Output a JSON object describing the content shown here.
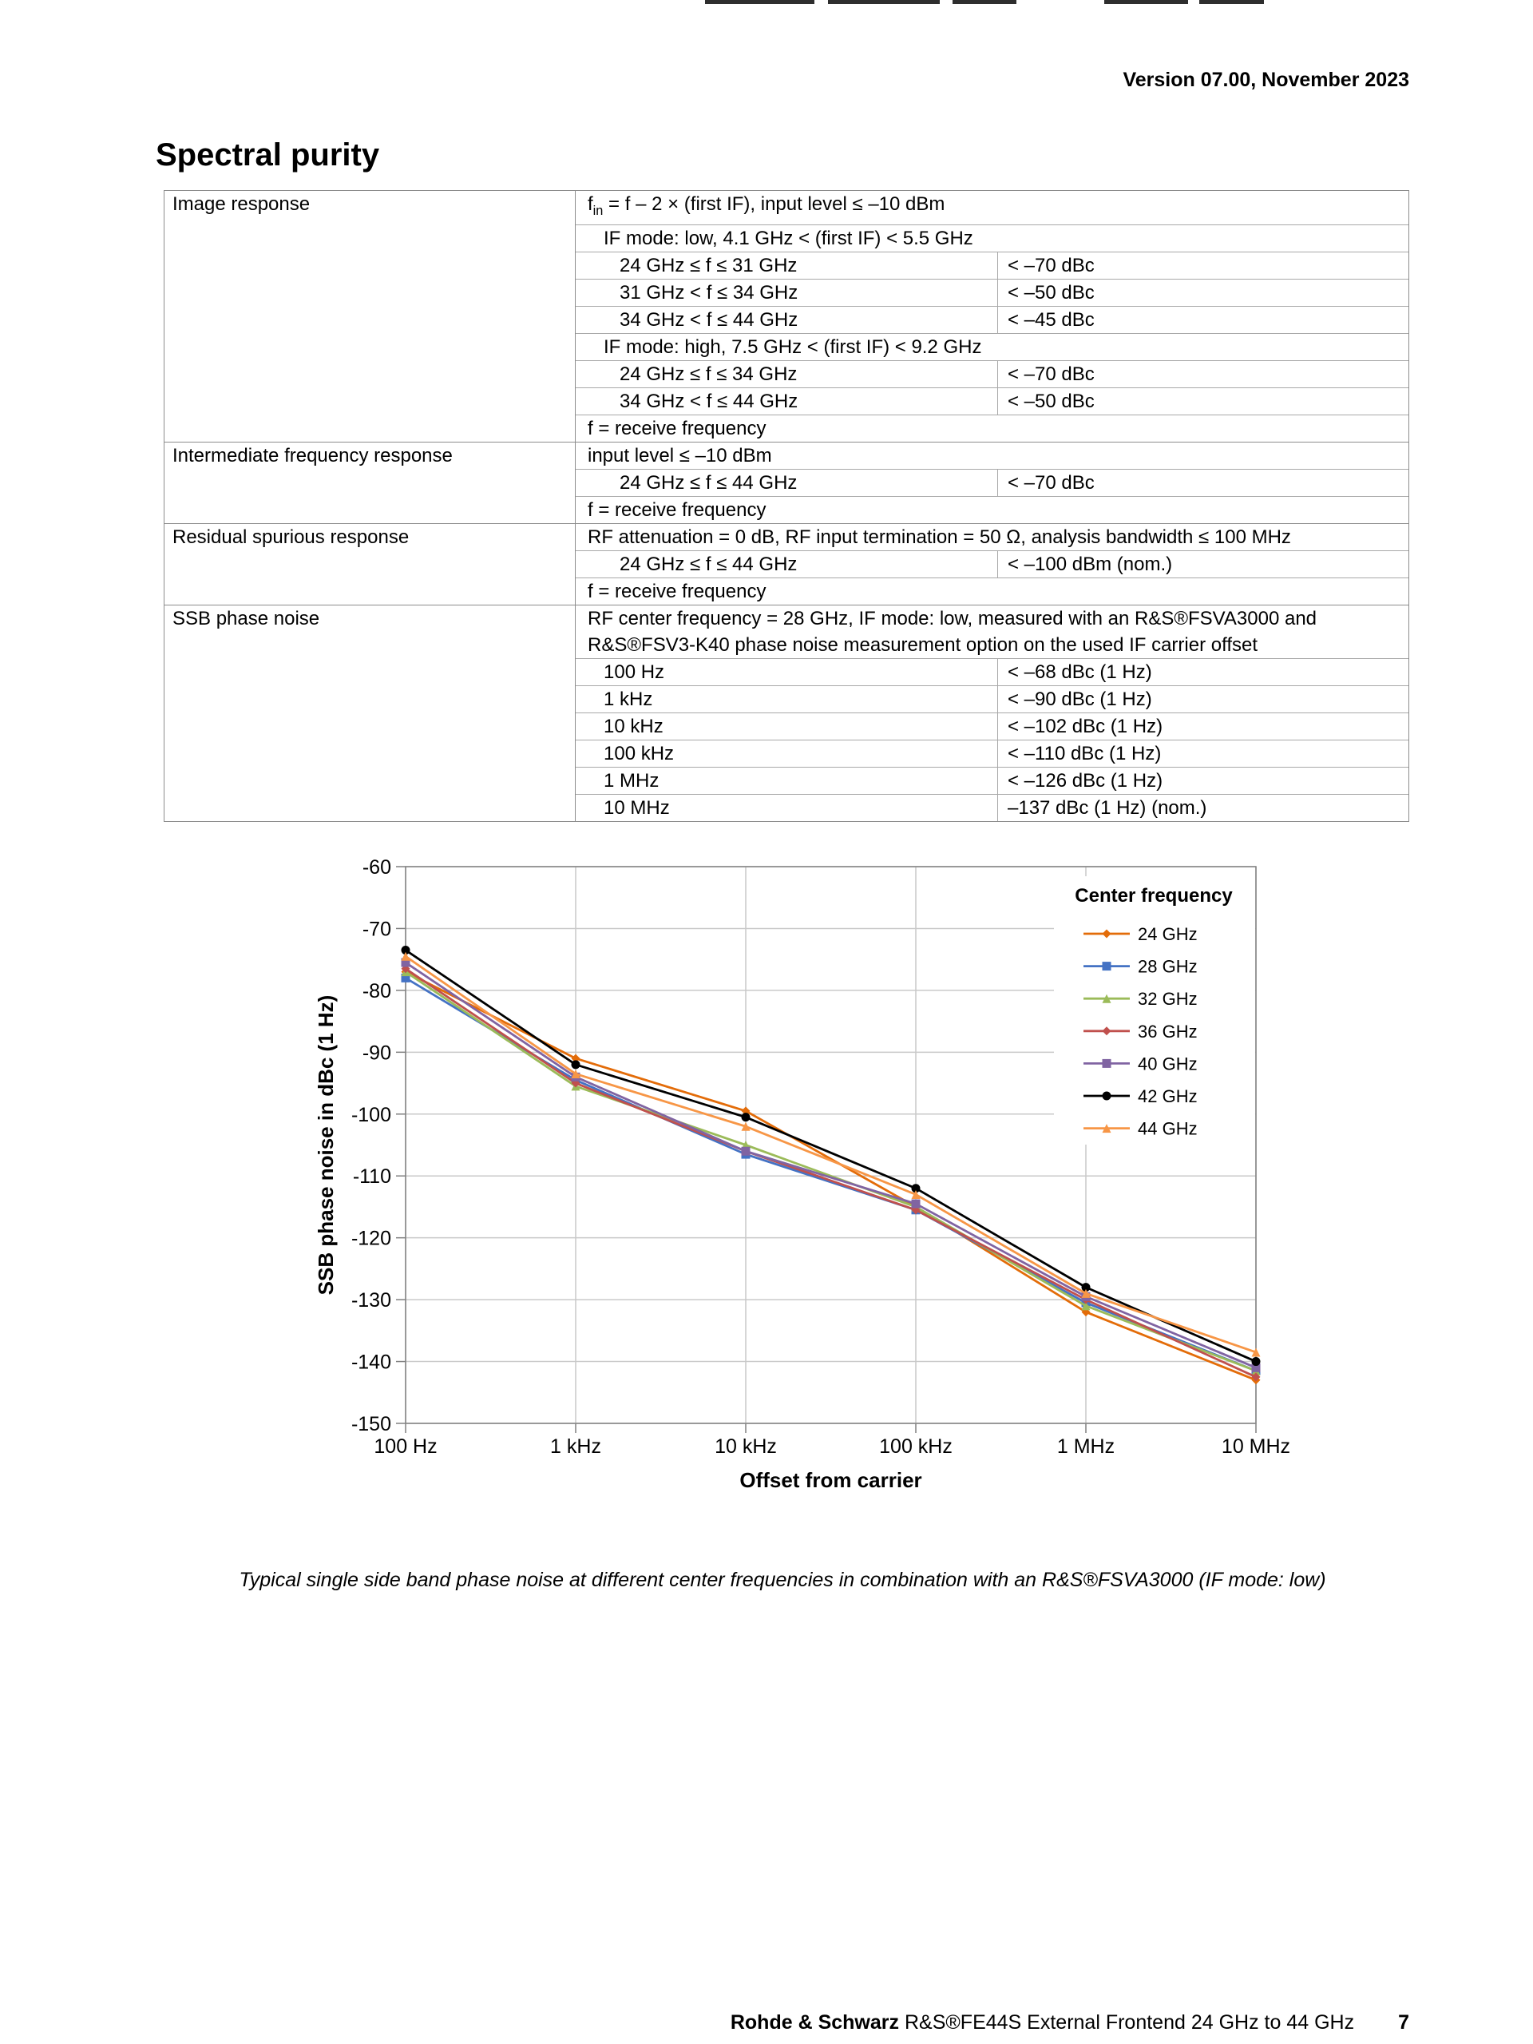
{
  "page": {
    "version_line": "Version 07.00, November 2023",
    "title": "Spectral purity",
    "caption": "Typical single side band phase noise at different center frequencies in combination with an R&S®FSVA3000 (IF mode: low)",
    "footer": {
      "brand": "Rohde & Schwarz",
      "product": "R&S®FE44S External Frontend 24 GHz to 44 GHz",
      "page_number": "7"
    }
  },
  "spec_table": {
    "groups": [
      {
        "label": "Image response",
        "rows": [
          {
            "pre": "f",
            "sub": "in",
            "c": " = f – 2 × (first IF), input level ≤ –10 dBm",
            "ind": 0
          },
          {
            "c": "IF mode: low, 4.1 GHz < (first IF) < 5.5 GHz",
            "ind": 1
          },
          {
            "c": "24 GHz ≤ f ≤ 31 GHz",
            "v": "< –70 dBc",
            "ind": 2
          },
          {
            "c": "31 GHz < f ≤ 34 GHz",
            "v": "< –50 dBc",
            "ind": 2
          },
          {
            "c": "34 GHz < f ≤ 44 GHz",
            "v": "< –45 dBc",
            "ind": 2
          },
          {
            "c": "IF mode: high, 7.5 GHz < (first IF) < 9.2 GHz",
            "ind": 1
          },
          {
            "c": "24 GHz ≤ f ≤ 34 GHz",
            "v": "< –70 dBc",
            "ind": 2
          },
          {
            "c": "34 GHz < f ≤ 44 GHz",
            "v": "< –50 dBc",
            "ind": 2
          },
          {
            "c": "f = receive frequency",
            "ind": 0
          }
        ]
      },
      {
        "label": "Intermediate frequency response",
        "rows": [
          {
            "c": "input level ≤ –10 dBm",
            "ind": 0
          },
          {
            "c": "24 GHz ≤ f ≤ 44 GHz",
            "v": "< –70 dBc",
            "ind": 2
          },
          {
            "c": "f = receive frequency",
            "ind": 0
          }
        ]
      },
      {
        "label": "Residual spurious response",
        "rows": [
          {
            "c": "RF attenuation = 0 dB, RF input termination = 50 Ω, analysis bandwidth ≤ 100 MHz",
            "ind": 0
          },
          {
            "c": "24 GHz ≤ f ≤ 44 GHz",
            "v": "< –100 dBm (nom.)",
            "ind": 2
          },
          {
            "c": "f = receive frequency",
            "ind": 0
          }
        ]
      },
      {
        "label": "SSB phase noise",
        "rows": [
          {
            "c": "RF center frequency = 28 GHz, IF mode: low, measured with an R&S®FSVA3000 and R&S®FSV3-K40 phase noise measurement option on the used IF carrier offset",
            "ind": 0
          },
          {
            "c": "100 Hz",
            "v": "< –68 dBc (1 Hz)",
            "ind": 1
          },
          {
            "c": "1 kHz",
            "v": "< –90 dBc (1 Hz)",
            "ind": 1
          },
          {
            "c": "10 kHz",
            "v": "< –102 dBc (1 Hz)",
            "ind": 1
          },
          {
            "c": "100 kHz",
            "v": "< –110 dBc (1 Hz)",
            "ind": 1
          },
          {
            "c": "1 MHz",
            "v": "< –126 dBc (1 Hz)",
            "ind": 1
          },
          {
            "c": "10 MHz",
            "v": "–137 dBc (1 Hz) (nom.)",
            "ind": 1
          }
        ]
      }
    ]
  },
  "chart_data": {
    "type": "line",
    "title": "",
    "xlabel": "Offset from carrier",
    "ylabel": "SSB phase noise in dBc (1 Hz)",
    "x_scale": "log",
    "x_tick_labels": [
      "100 Hz",
      "1 kHz",
      "10 kHz",
      "100 kHz",
      "1 MHz",
      "10 MHz"
    ],
    "x_values_hz": [
      100,
      1000,
      10000,
      100000,
      1000000,
      10000000
    ],
    "ylim": [
      -150,
      -60
    ],
    "y_tick_step": 10,
    "grid": true,
    "legend_title": "Center frequency",
    "legend_position": "top-right-inside",
    "series": [
      {
        "name": "24 GHz",
        "color": "#E36C09",
        "marker": "diamond",
        "values": [
          -77,
          -91,
          -99.5,
          -115,
          -132,
          -143
        ]
      },
      {
        "name": "28 GHz",
        "color": "#4472C4",
        "marker": "square",
        "values": [
          -78,
          -94.5,
          -106.5,
          -115.5,
          -130.5,
          -141.5
        ]
      },
      {
        "name": "32 GHz",
        "color": "#9BBB59",
        "marker": "triangle",
        "values": [
          -77,
          -95.5,
          -105,
          -115,
          -131,
          -141.5
        ]
      },
      {
        "name": "36 GHz",
        "color": "#C0504D",
        "marker": "diamond",
        "values": [
          -76.5,
          -95,
          -106,
          -115.5,
          -130,
          -142.5
        ]
      },
      {
        "name": "40 GHz",
        "color": "#8064A2",
        "marker": "square",
        "values": [
          -75.5,
          -94,
          -106,
          -114.5,
          -129.5,
          -141
        ]
      },
      {
        "name": "42 GHz",
        "color": "#000000",
        "marker": "circle",
        "values": [
          -73.5,
          -92,
          -100.5,
          -112,
          -128,
          -140
        ]
      },
      {
        "name": "44 GHz",
        "color": "#F79646",
        "marker": "triangle",
        "values": [
          -74.5,
          -93.5,
          -102,
          -113,
          -129,
          -138.5
        ]
      }
    ]
  }
}
